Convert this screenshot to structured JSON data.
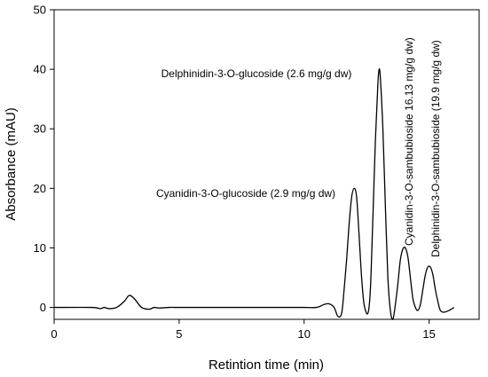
{
  "chart_data": {
    "type": "line",
    "xlabel": "Retintion time (min)",
    "ylabel": "Absorbance (mAU)",
    "xlim": [
      0,
      17
    ],
    "ylim": [
      -2,
      50
    ],
    "xticks": [
      0,
      5,
      10,
      15
    ],
    "yticks": [
      0,
      10,
      20,
      30,
      40,
      50
    ],
    "grid": false,
    "series": [
      {
        "x": [
          0,
          1.5,
          1.85,
          2.0,
          2.2,
          2.5,
          2.8,
          3.0,
          3.2,
          3.5,
          3.8,
          4.0,
          4.2,
          4.6,
          5.0,
          6.0,
          7.0,
          8.0,
          9.0,
          10.0,
          10.5,
          10.8,
          11.0,
          11.2,
          11.35,
          11.5,
          11.6,
          11.7,
          11.8,
          11.9,
          12.0,
          12.1,
          12.2,
          12.3,
          12.4,
          12.55,
          12.65,
          12.75,
          12.85,
          12.95,
          13.0,
          13.05,
          13.15,
          13.25,
          13.35,
          13.45,
          13.55,
          13.65,
          13.75,
          13.85,
          13.95,
          14.05,
          14.15,
          14.25,
          14.35,
          14.45,
          14.55,
          14.65,
          14.75,
          14.85,
          14.95,
          15.05,
          15.15,
          15.25,
          15.35,
          15.45,
          15.6,
          15.8,
          16.0
        ],
        "y": [
          0,
          0,
          -0.2,
          0,
          -0.2,
          0,
          1.0,
          2.0,
          1.5,
          0,
          -0.3,
          0,
          -0.1,
          0,
          0,
          0,
          0,
          0,
          0,
          0,
          0,
          0.5,
          0.6,
          0,
          -1.5,
          -1.0,
          3.0,
          8.0,
          14.0,
          18.5,
          20.0,
          18.5,
          12.0,
          5.0,
          0.5,
          -1.0,
          3.0,
          15.0,
          28.0,
          37.5,
          40.0,
          38.5,
          30.0,
          17.0,
          5.0,
          -0.5,
          -2.0,
          0.5,
          4.0,
          8.0,
          9.8,
          10.0,
          8.5,
          5.0,
          1.5,
          0,
          -0.5,
          0.5,
          3.0,
          5.5,
          6.8,
          6.8,
          5.5,
          3.0,
          1.0,
          -0.5,
          -0.8,
          -0.5,
          0
        ]
      }
    ],
    "annotations": [
      {
        "text": "Delphinidin-3-O-glucoside (2.6 mg/g dw)",
        "x": 13.0,
        "y": 40.0,
        "orientation": "horizontal"
      },
      {
        "text": "Cyanidin-3-O-glucoside (2.9 mg/g dw)",
        "x": 12.0,
        "y": 20.0,
        "orientation": "horizontal"
      },
      {
        "text": "Cyanidin-3-O-sambubioside 16.13 mg/g dw)",
        "x": 14.05,
        "y": 10.0,
        "orientation": "vertical"
      },
      {
        "text": "Delphinidin-3-O-sambubioside (19.9 mg/g dw)",
        "x": 15.0,
        "y": 6.8,
        "orientation": "vertical"
      }
    ]
  }
}
